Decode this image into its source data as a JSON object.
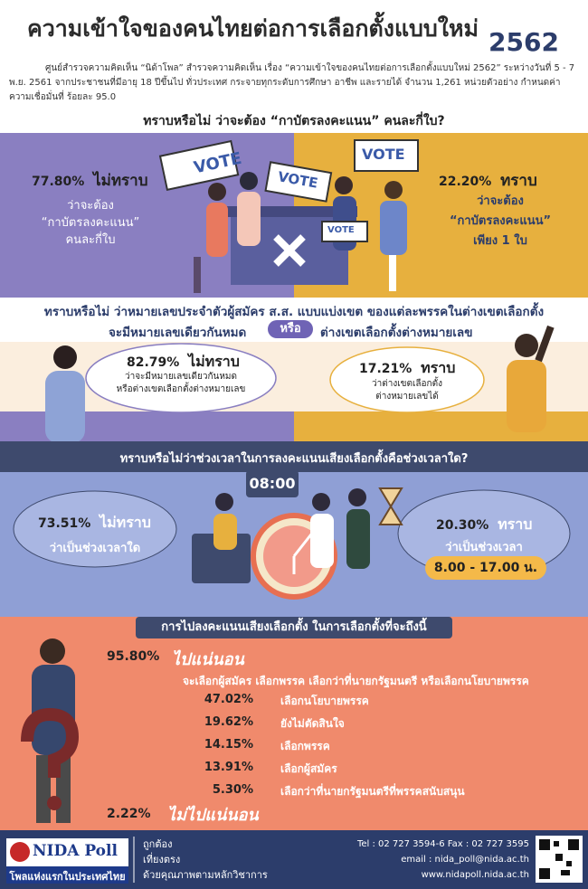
{
  "header": {
    "title": "ความเข้าใจของคนไทยต่อการเลือกตั้งแบบใหม่",
    "year": "2562",
    "intro": "ศูนย์สำรวจความคิดเห็น “นิด้าโพล” สำรวจความคิดเห็น เรื่อง “ความเข้าใจของคนไทยต่อการเลือกตั้งแบบใหม่ 2562” ระหว่างวันที่ 5 - 7 พ.ย. 2561 จากประชาชนที่มีอายุ 18 ปีขึ้นไป ทั่วประเทศ กระจายทุกระดับการศึกษา อาชีพ และรายได้ จำนวน 1,261 หน่วยตัวอย่าง กำหนดค่าความเชื่อมั่นที่ ร้อยละ 95.0"
  },
  "section1": {
    "question": "ทราบหรือไม่ ว่าจะต้อง “กาบัตรลงคะแนน” คนละกี่ใบ?",
    "signs": [
      "VOTE",
      "VOTE",
      "VOTE",
      "VOTE"
    ],
    "left": {
      "percent": "77.80%",
      "answer": "ไม่ทราบ",
      "detail": [
        "ว่าจะต้อง",
        "“กาบัตรลงคะแนน”",
        "คนละกี่ใบ"
      ]
    },
    "right": {
      "percent": "22.20%",
      "answer": "ทราบ",
      "detail": [
        "ว่าจะต้อง",
        "“กาบัตรลงคะแนน”",
        "เพียง 1 ใบ"
      ]
    }
  },
  "section2": {
    "question_line1": "ทราบหรือไม่ ว่าหมายเลขประจำตัวผู้สมัคร ส.ส. แบบแบ่งเขต ของแต่ละพรรคในต่างเขตเลือกตั้ง",
    "question_line2a": "จะมีหมายเลขเดียวกันหมด",
    "question_or": "หรือ",
    "question_line2b": "ต่างเขตเลือกตั้งต่างหมายเลข",
    "left": {
      "percent": "82.79%",
      "answer": "ไม่ทราบ",
      "detail": [
        "ว่าจะมีหมายเลขเดียวกันหมด",
        "หรือต่างเขตเลือกตั้งต่างหมายเลข"
      ]
    },
    "right": {
      "percent": "17.21%",
      "answer": "ทราบ",
      "detail": [
        "ว่าต่างเขตเลือกตั้ง",
        "ต่างหมายเลขได้"
      ]
    }
  },
  "section3": {
    "question": "ทราบหรือไม่ว่าช่วงเวลาในการลงคะแนนเสียงเลือกตั้งคือช่วงเวลาใด?",
    "clock": "08:00",
    "left": {
      "percent": "73.51%",
      "answer": "ไม่ทราบ",
      "detail": "ว่าเป็นช่วงเวลาใด"
    },
    "right": {
      "percent": "20.30%",
      "answer": "ทราบ",
      "detail": "ว่าเป็นช่วงเวลา",
      "time": "8.00 - 17.00 น."
    }
  },
  "section4": {
    "question": "การไปลงคะแนนเสียงเลือกตั้ง ในการเลือกตั้งที่จะถึงนี้",
    "yes": {
      "percent": "95.80%",
      "answer": "ไปแน่นอน"
    },
    "subtitle": "จะเลือกผู้สมัคร เลือกพรรค เลือกว่าที่นายกรัฐมนตรี หรือเลือกนโยบายพรรค",
    "rows": [
      {
        "percent": "47.02%",
        "label": "เลือกนโยบายพรรค"
      },
      {
        "percent": "19.62%",
        "label": "ยังไม่ตัดสินใจ"
      },
      {
        "percent": "14.15%",
        "label": "เลือกพรรค"
      },
      {
        "percent": "13.91%",
        "label": "เลือกผู้สมัคร"
      },
      {
        "percent": "5.30%",
        "label": "เลือกว่าที่นายกรัฐมนตรีที่พรรคสนับสนุน"
      }
    ],
    "no": {
      "percent": "2.22%",
      "answer": "ไม่ไปแน่นอน"
    }
  },
  "footer": {
    "logo": "NIDA Poll",
    "tagline": "โพลแห่งแรกในประเทศไทย",
    "motto": [
      "ถูกต้อง",
      "เที่ยงตรง",
      "ด้วยคุณภาพตามหลักวิชาการ"
    ],
    "tel": "Tel : 02 727 3594-6 Fax : 02 727 3595",
    "email": "email : nida_poll@nida.ac.th",
    "web": "www.nidapoll.nida.ac.th"
  }
}
